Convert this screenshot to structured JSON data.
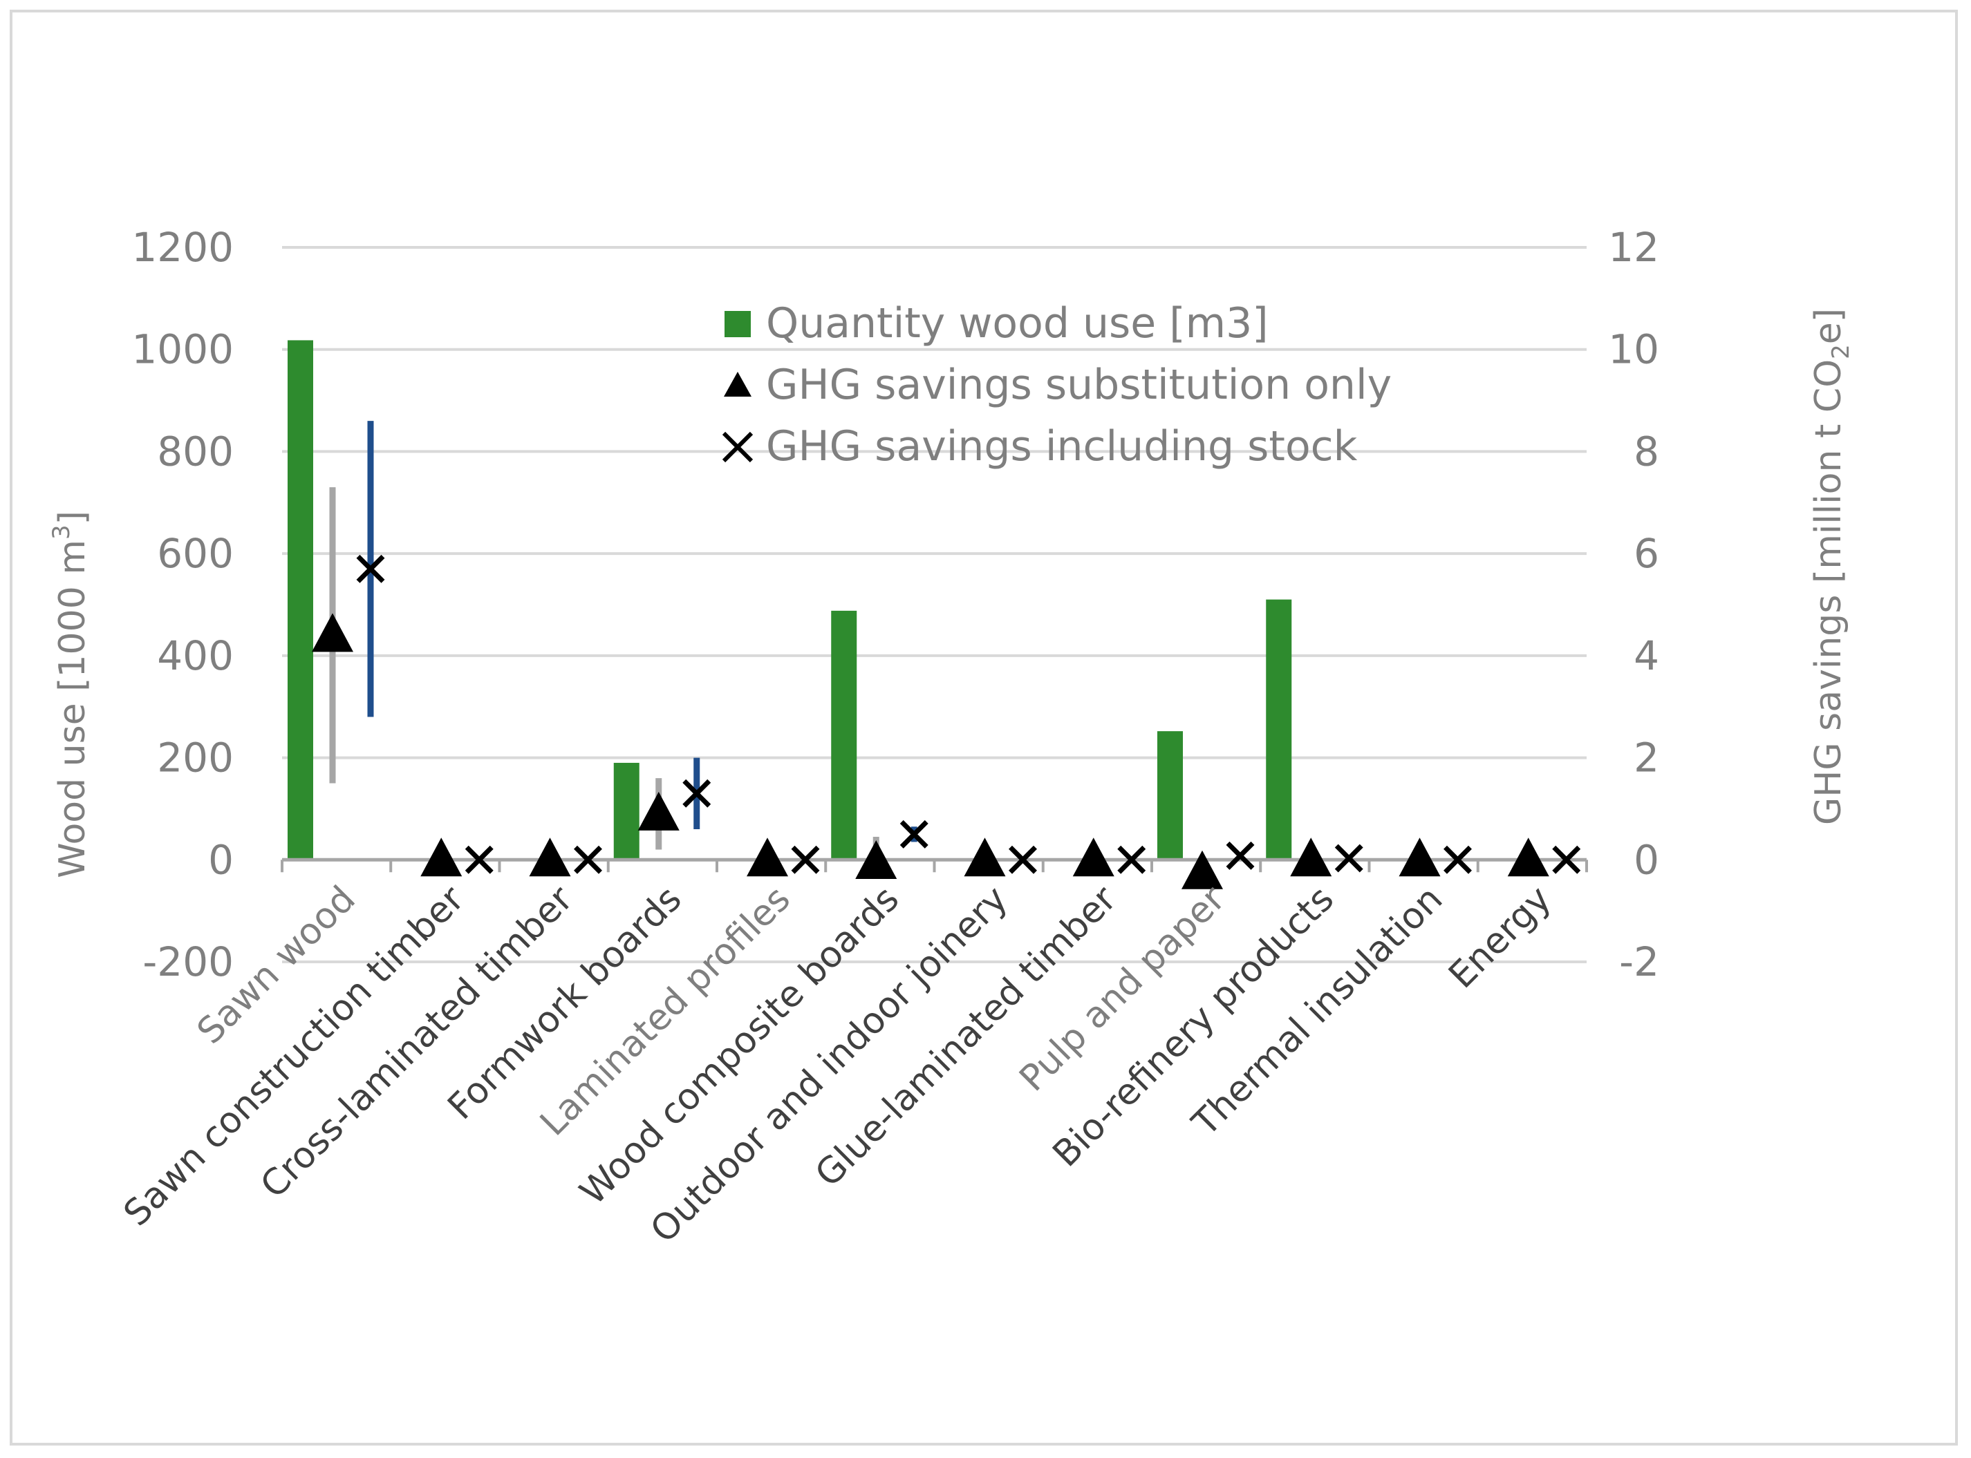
{
  "chart_data": {
    "type": "bar",
    "categories": [
      "Sawn wood",
      "Sawn construction timber",
      "Cross-laminated timber",
      "Formwork boards",
      "Laminated profiles",
      "Wood composite boards",
      "Outdoor and indoor joinery",
      "Glue-laminated timber",
      "Pulp and paper",
      "Bio-refinery products",
      "Thermal insulation",
      "Energy"
    ],
    "category_label_colors": [
      "#7f7f7f",
      "#404040",
      "#404040",
      "#404040",
      "#7f7f7f",
      "#404040",
      "#404040",
      "#404040",
      "#7f7f7f",
      "#404040",
      "#404040",
      "#404040"
    ],
    "series": [
      {
        "name": "Quantity wood use [m3]",
        "axis": "left",
        "kind": "bar",
        "color": "#2e8b2e",
        "values": [
          1018,
          0,
          0,
          190,
          0,
          488,
          0,
          0,
          252,
          510,
          0,
          0
        ]
      },
      {
        "name": "GHG savings substitution only",
        "axis": "right",
        "kind": "marker",
        "marker": "triangle",
        "color": "#000000",
        "values": [
          4.4,
          0,
          0,
          0.9,
          0,
          -0.05,
          0,
          0,
          -0.25,
          0,
          0,
          0
        ],
        "error_low": [
          1.5,
          null,
          null,
          0.2,
          null,
          null,
          null,
          null,
          null,
          null,
          null,
          null
        ],
        "error_high": [
          7.3,
          null,
          null,
          1.6,
          null,
          0.45,
          null,
          null,
          null,
          null,
          null,
          null
        ],
        "error_color": "#a6a6a6"
      },
      {
        "name": "GHG savings including stock",
        "axis": "right",
        "kind": "marker",
        "marker": "x",
        "color": "#000000",
        "values": [
          5.7,
          0,
          0,
          1.3,
          0,
          0.5,
          0,
          0,
          0.08,
          0.03,
          0,
          0
        ],
        "error_low": [
          2.8,
          null,
          null,
          0.6,
          null,
          0.35,
          null,
          null,
          null,
          null,
          null,
          null
        ],
        "error_high": [
          8.6,
          null,
          null,
          2.0,
          null,
          0.65,
          null,
          null,
          null,
          null,
          null,
          null
        ],
        "error_color": "#1f4e8c"
      }
    ],
    "ylabel": "Wood use [1000 m³]",
    "ylabel_left_parts": [
      "Wood use [1000 m",
      "3",
      "]"
    ],
    "ylim": [
      -200,
      1200
    ],
    "yticks": [
      "-200",
      "0",
      "200",
      "400",
      "600",
      "800",
      "1000",
      "1200"
    ],
    "y2label": "GHG savings [million t CO₂e]",
    "y2label_parts": [
      "GHG savings [million t CO",
      "2",
      "e]"
    ],
    "y2lim": [
      -2,
      12
    ],
    "y2ticks": [
      "-2",
      "0",
      "2",
      "4",
      "6",
      "8",
      "10",
      "12"
    ],
    "grid": true,
    "legend_position": "top-center"
  }
}
